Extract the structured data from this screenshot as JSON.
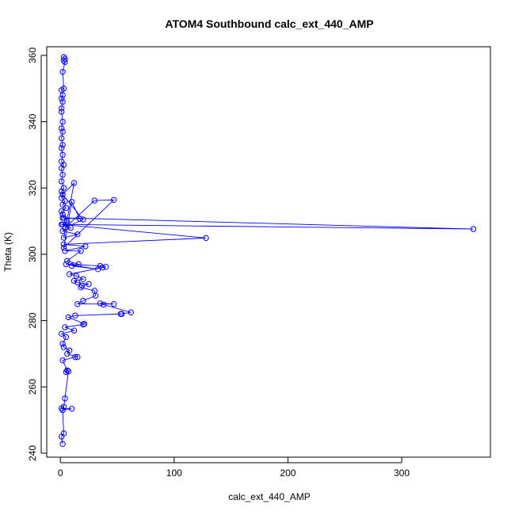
{
  "chart_data": {
    "type": "line",
    "title": "ATOM4 Southbound calc_ext_440_AMP",
    "xlabel": "calc_ext_440_AMP",
    "ylabel": "Theta (K)",
    "xlim": [
      -12,
      378
    ],
    "ylim": [
      238.8,
      362.6
    ],
    "xticks": [
      0,
      100,
      200,
      300
    ],
    "yticks": [
      240,
      260,
      280,
      300,
      320,
      340,
      360
    ],
    "grid": false,
    "legend": "none",
    "color": "#0000ff",
    "marker": "open-circle",
    "series": [
      {
        "x": [
          3,
          4,
          3,
          4,
          2,
          3,
          1,
          2,
          1,
          2,
          1,
          1,
          2,
          1,
          2,
          1,
          2,
          1,
          2,
          1,
          3,
          1,
          2,
          1,
          3,
          1,
          2,
          1,
          4,
          2,
          5,
          1,
          2,
          3,
          6,
          1,
          9,
          2,
          15,
          3,
          12,
          2,
          20,
          4,
          30,
          47,
          3,
          10,
          17,
          2,
          363,
          2,
          128,
          3,
          22,
          4,
          18,
          6,
          16,
          10,
          33,
          5,
          35,
          37,
          40,
          8,
          14,
          20,
          12,
          15,
          25,
          19,
          18,
          30,
          31,
          20,
          15,
          47,
          35,
          38,
          62,
          54,
          53,
          13,
          7,
          21,
          20,
          4,
          12,
          1,
          5,
          2,
          3,
          8,
          6,
          15,
          13,
          2,
          6,
          5,
          7,
          4,
          3,
          1,
          10,
          2,
          3,
          1,
          2
        ],
        "y": [
          359.5,
          359,
          358.5,
          358,
          355,
          350,
          349.5,
          348,
          347,
          346,
          344,
          343,
          340,
          338,
          337,
          335,
          333,
          332,
          330,
          328,
          327,
          326,
          324,
          322,
          320,
          319,
          318,
          317,
          316,
          315,
          314,
          313,
          312,
          311,
          310,
          309,
          308,
          307,
          306,
          305,
          321.5,
          318,
          310.5,
          308,
          316.2,
          316.4,
          302,
          315.8,
          310.7,
          311,
          307.6,
          309,
          304.9,
          303,
          302.4,
          301,
          301,
          298,
          297,
          296.5,
          295.5,
          297,
          296.5,
          296,
          296.2,
          294,
          293.5,
          292.5,
          292,
          291.5,
          291,
          290.5,
          290,
          289,
          287.5,
          286,
          285,
          285,
          285.2,
          284.8,
          282.5,
          282,
          282,
          281.5,
          281,
          279,
          278.8,
          278,
          277,
          276,
          275,
          273,
          272,
          271,
          270,
          269,
          269,
          268,
          265,
          264.5,
          264.7,
          256.5,
          254,
          253.5,
          253.4,
          253,
          246,
          245,
          242.8
        ]
      }
    ]
  }
}
